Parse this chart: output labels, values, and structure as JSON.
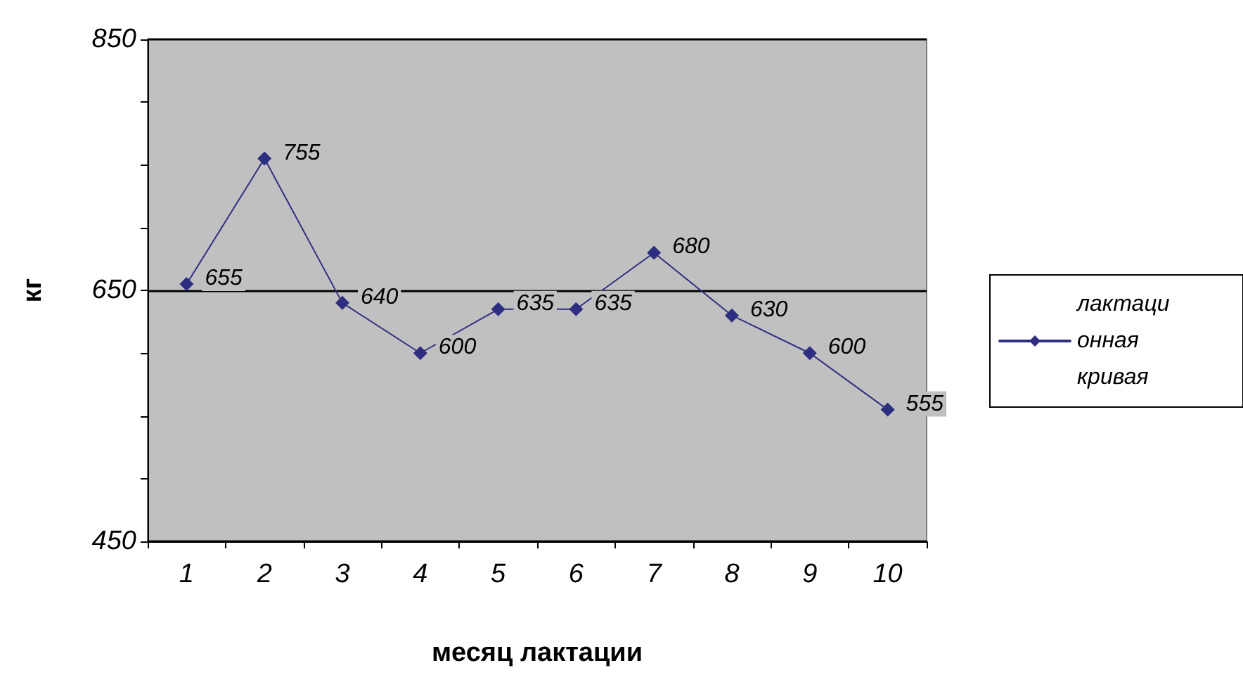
{
  "chart_data": {
    "type": "line",
    "xlabel": "месяц лактации",
    "ylabel": "кг",
    "categories": [
      "1",
      "2",
      "3",
      "4",
      "5",
      "6",
      "7",
      "8",
      "9",
      "10"
    ],
    "series": [
      {
        "name": "лактационная кривая",
        "color": "#2e2e80",
        "values": [
          655,
          755,
          640,
          600,
          635,
          635,
          680,
          630,
          600,
          555
        ]
      }
    ],
    "ylim": [
      450,
      850
    ],
    "yticks": [
      450,
      {
        "value": 500,
        "label": null
      },
      {
        "value": 550,
        "label": null
      },
      {
        "value": 600,
        "label": null
      },
      650,
      {
        "value": 700,
        "label": null
      },
      {
        "value": 750,
        "label": null
      },
      {
        "value": 800,
        "label": null
      },
      850
    ],
    "grid": "y",
    "legend": "right",
    "marker": "diamond",
    "line_style": "solid",
    "data_labels": true
  }
}
